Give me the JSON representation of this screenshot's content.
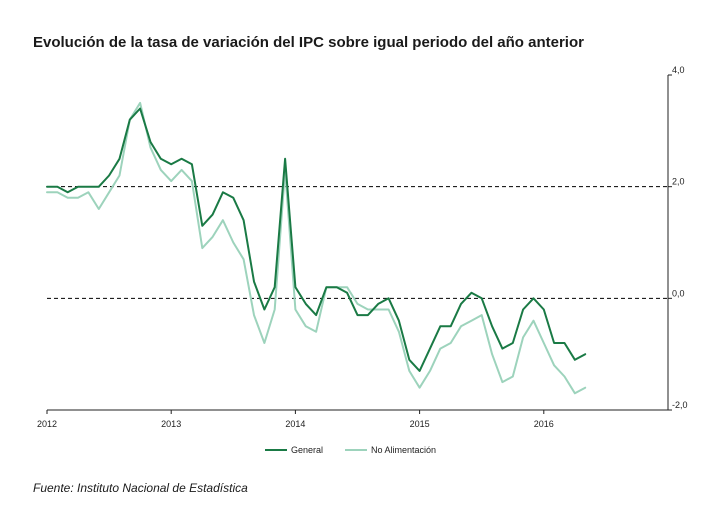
{
  "title": "Evolución de la tasa de variación del IPC sobre igual  periodo del año anterior",
  "source": "Fuente: Instituto Nacional de Estadística",
  "colors": {
    "general": "#1a7a45",
    "no_alimentacion": "#9dd3bc",
    "axis": "#222222",
    "reference": "#000000"
  },
  "chart_data": {
    "type": "line",
    "x_ticks": [
      "2012",
      "2013",
      "2014",
      "2015",
      "2016"
    ],
    "x_tick_month_index": [
      0,
      12,
      24,
      36,
      48
    ],
    "x_range_months": [
      0,
      60
    ],
    "y_ticks": [
      "4,0",
      "2,0",
      "0,0",
      "-2,0"
    ],
    "y_tick_values": [
      4,
      2,
      0,
      -2
    ],
    "ylim": [
      -2,
      4
    ],
    "y_axis_side": "right",
    "reference_lines": [
      2,
      0
    ],
    "legend_position": "bottom-center",
    "categories": [
      "2012-01",
      "2012-02",
      "2012-03",
      "2012-04",
      "2012-05",
      "2012-06",
      "2012-07",
      "2012-08",
      "2012-09",
      "2012-10",
      "2012-11",
      "2012-12",
      "2013-01",
      "2013-02",
      "2013-03",
      "2013-04",
      "2013-05",
      "2013-06",
      "2013-07",
      "2013-08",
      "2013-09",
      "2013-10",
      "2013-11",
      "2013-12",
      "2014-01",
      "2014-02",
      "2014-03",
      "2014-04",
      "2014-05",
      "2014-06",
      "2014-07",
      "2014-08",
      "2014-09",
      "2014-10",
      "2014-11",
      "2014-12",
      "2015-01",
      "2015-02",
      "2015-03",
      "2015-04",
      "2015-05",
      "2015-06",
      "2015-07",
      "2015-08",
      "2015-09",
      "2015-10",
      "2015-11",
      "2015-12",
      "2016-01",
      "2016-02",
      "2016-03",
      "2016-04",
      "2016-05"
    ],
    "series": [
      {
        "name": "General",
        "values": [
          2.0,
          2.0,
          1.9,
          2.0,
          2.0,
          2.0,
          2.2,
          2.5,
          3.2,
          3.4,
          2.8,
          2.5,
          2.4,
          2.5,
          2.4,
          1.3,
          1.5,
          1.9,
          1.8,
          1.4,
          0.3,
          -0.2,
          0.2,
          2.5,
          0.2,
          -0.1,
          -0.3,
          0.2,
          0.2,
          0.1,
          -0.3,
          -0.3,
          -0.1,
          0.0,
          -0.4,
          -1.1,
          -1.3,
          -0.9,
          -0.5,
          -0.5,
          -0.1,
          0.1,
          0.0,
          -0.5,
          -0.9,
          -0.8,
          -0.2,
          0.0,
          -0.2,
          -0.8,
          -0.8,
          -1.1,
          -1.0
        ]
      },
      {
        "name": "No Alimentación",
        "values": [
          1.9,
          1.9,
          1.8,
          1.8,
          1.9,
          1.6,
          1.9,
          2.2,
          3.2,
          3.5,
          2.7,
          2.3,
          2.1,
          2.3,
          2.1,
          0.9,
          1.1,
          1.4,
          1.0,
          0.7,
          -0.3,
          -0.8,
          -0.2,
          2.3,
          -0.2,
          -0.5,
          -0.6,
          0.2,
          0.2,
          0.2,
          -0.1,
          -0.2,
          -0.2,
          -0.2,
          -0.6,
          -1.3,
          -1.6,
          -1.3,
          -0.9,
          -0.8,
          -0.5,
          -0.4,
          -0.3,
          -1.0,
          -1.5,
          -1.4,
          -0.7,
          -0.4,
          -0.8,
          -1.2,
          -1.4,
          -1.7,
          -1.6
        ]
      }
    ]
  }
}
